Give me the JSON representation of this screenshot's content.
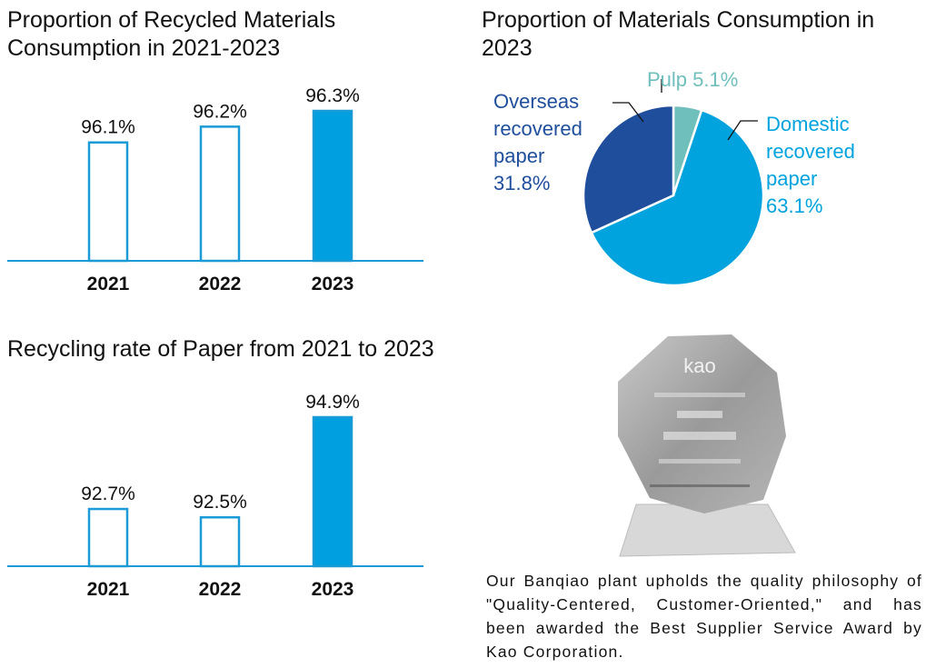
{
  "chart_data": [
    {
      "type": "bar",
      "title": "Proportion of Recycled Materials Consumption in 2021-2023",
      "categories": [
        "2021",
        "2022",
        "2023"
      ],
      "values": [
        96.1,
        96.2,
        96.3
      ],
      "data_labels": [
        "96.1%",
        "96.2%",
        "96.3%"
      ],
      "highlight": "2023",
      "grid": false,
      "colors": {
        "bar": "#009fdf",
        "outline": "#1a9ad6"
      }
    },
    {
      "type": "pie",
      "title": "Proportion of Materials Consumption in 2023",
      "slices": [
        {
          "label": "Pulp",
          "value": 5.1,
          "text": "Pulp 5.1%",
          "color": "#6fbfbd"
        },
        {
          "label": "Domestic recovered paper",
          "value": 63.1,
          "text": "Domestic recovered paper 63.1%",
          "color": "#00a3de"
        },
        {
          "label": "Overseas recovered paper",
          "value": 31.8,
          "text": "Overseas recovered paper 31.8%",
          "color": "#1f4e9c"
        }
      ]
    },
    {
      "type": "bar",
      "title": "Recycling rate of Paper from 2021 to 2023",
      "categories": [
        "2021",
        "2022",
        "2023"
      ],
      "values": [
        92.7,
        92.5,
        94.9
      ],
      "data_labels": [
        "92.7%",
        "92.5%",
        "94.9%"
      ],
      "highlight": "2023",
      "grid": false,
      "colors": {
        "bar": "#009fdf",
        "outline": "#1a9ad6"
      }
    }
  ],
  "photo": {
    "logo_text": "Kao",
    "description_icon": "trophy-image"
  },
  "caption": "Our Banqiao plant upholds the quality philosophy of \"Quality-Centered, Customer-Oriented,\" and has been awarded the Best Supplier Service Award by Kao Corporation."
}
